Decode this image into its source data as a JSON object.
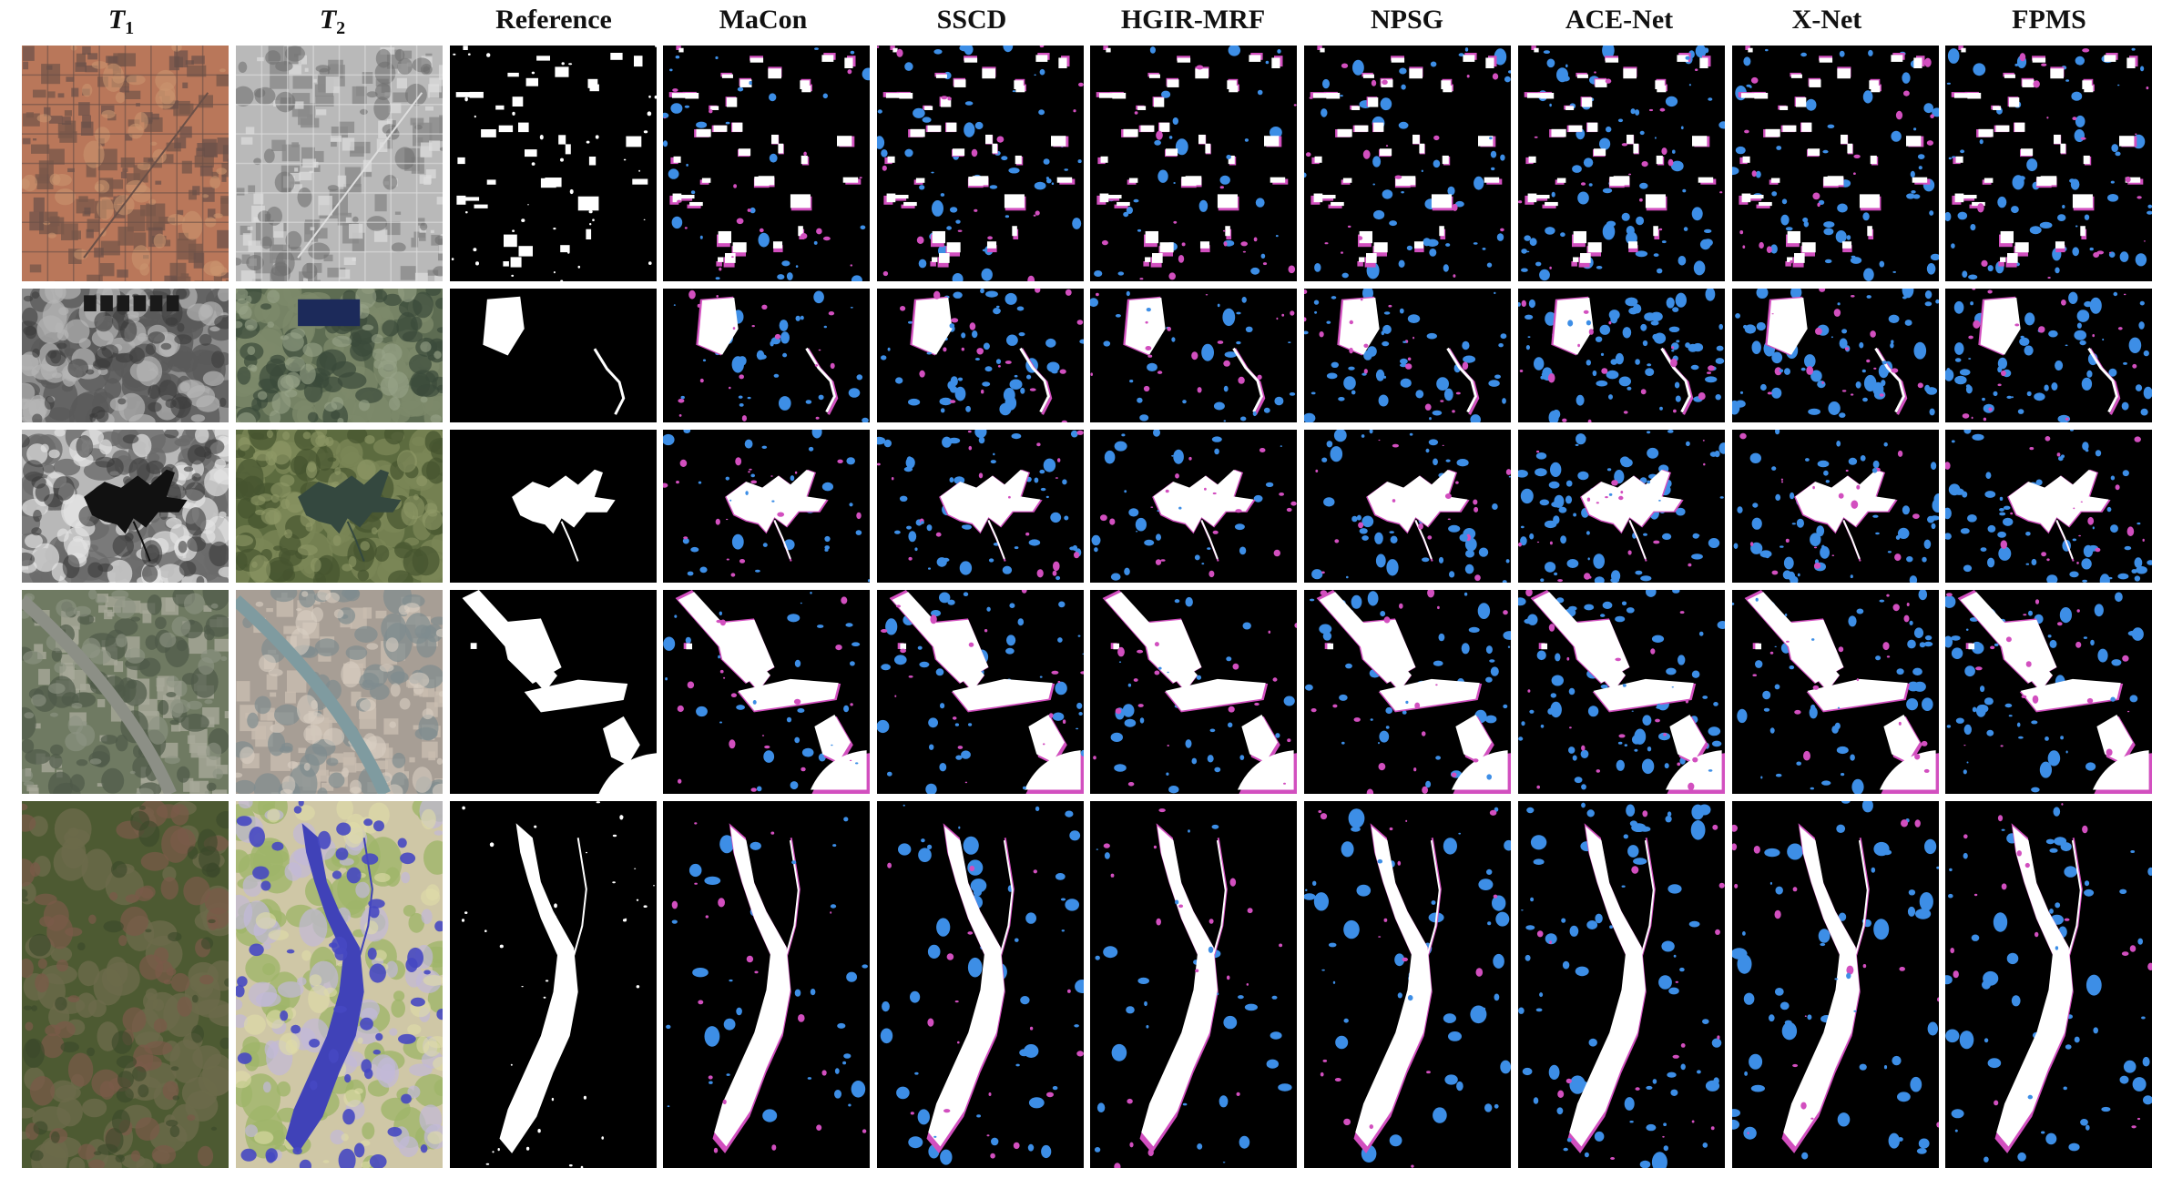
{
  "figure": {
    "columns": [
      {
        "id": "t1",
        "var": "T",
        "sub": "1",
        "kind": "t1"
      },
      {
        "id": "t2",
        "var": "T",
        "sub": "2",
        "kind": "t2"
      },
      {
        "id": "reference",
        "label": "Reference",
        "kind": "ref"
      },
      {
        "id": "macon",
        "label": "MaCon",
        "kind": "result"
      },
      {
        "id": "sscd",
        "label": "SSCD",
        "kind": "result"
      },
      {
        "id": "hgir-mrf",
        "label": "HGIR-MRF",
        "kind": "result"
      },
      {
        "id": "npsg",
        "label": "NPSG",
        "kind": "result"
      },
      {
        "id": "ace-net",
        "label": "ACE-Net",
        "kind": "result"
      },
      {
        "id": "x-net",
        "label": "X-Net",
        "kind": "result"
      },
      {
        "id": "fpms",
        "label": "FPMS",
        "kind": "result"
      }
    ],
    "rows": [
      {
        "id": "row-1",
        "scene": "urban-grid"
      },
      {
        "id": "row-2",
        "scene": "farmland-pond"
      },
      {
        "id": "row-3",
        "scene": "lake"
      },
      {
        "id": "row-4",
        "scene": "river-city"
      },
      {
        "id": "row-5",
        "scene": "flood"
      }
    ],
    "colors": {
      "unchanged": "#000000",
      "true_positive": "#ffffff",
      "false_positive": "#3d8ee6",
      "false_negative": "#d24fbf",
      "background": "#ffffff"
    }
  }
}
